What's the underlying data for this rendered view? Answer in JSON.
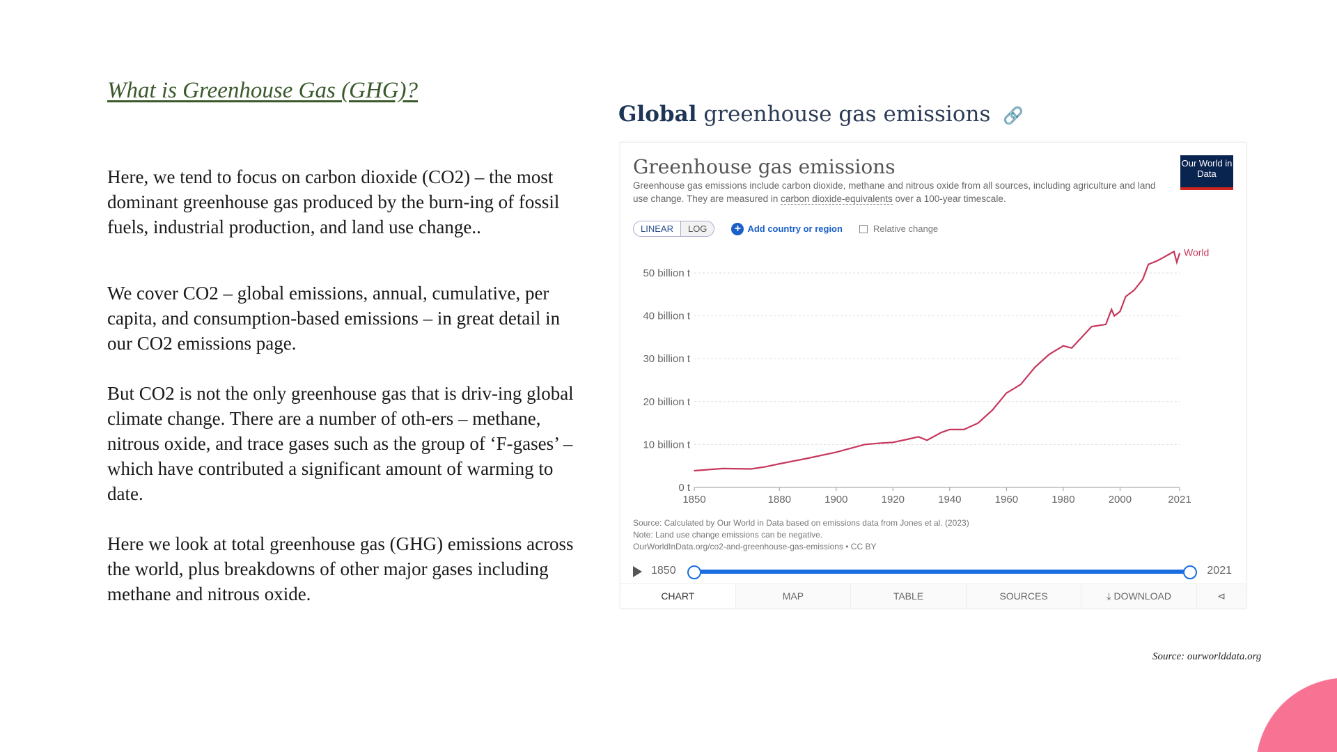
{
  "slide": {
    "heading": "What is Greenhouse Gas (GHG)?",
    "paragraphs": [
      "Here, we tend to focus on carbon dioxide (CO2) – the most dominant greenhouse gas produced by the burn-ing of fossil fuels, industrial production, and land use change..",
      "We cover CO2 – global emissions, annual, cumulative, per capita, and consumption-based emissions – in great detail in our CO2 emissions page.",
      "But CO2 is not the only greenhouse gas that is driv-ing global climate change. There are a number of oth-ers – methane, nitrous oxide, and trace gases such as the group of ‘F-gases’ – which have contributed a significant amount of warming to date.",
      "Here we look at total greenhouse gas (GHG) emissions across the world, plus breakdowns of other major gases including methane and nitrous oxide."
    ],
    "source": "Source: ourworlddata.org",
    "accent_color": "#f77293"
  },
  "embed": {
    "title_bold": "Global",
    "title_rest": "greenhouse gas emissions",
    "card_title": "Greenhouse gas emissions",
    "subtitle_a": "Greenhouse gas emissions include carbon dioxide, methane and nitrous oxide from all sources, including agriculture and land use change. They are measured in ",
    "subtitle_link": "carbon dioxide-equivalents",
    "subtitle_b": " over a 100-year timescale.",
    "logo": "Our World in Data",
    "linear": "LINEAR",
    "log": "LOG",
    "add": "Add country or region",
    "relative": "Relative change",
    "notes": [
      "Source: Calculated by Our World in Data based on emissions data from Jones et al. (2023)",
      "Note: Land use change emissions can be negative.",
      "OurWorldInData.org/co2-and-greenhouse-gas-emissions • CC BY"
    ],
    "slider_start": "1850",
    "slider_end": "2021",
    "tabs": [
      "CHART",
      "MAP",
      "TABLE",
      "SOURCES",
      "DOWNLOAD"
    ]
  },
  "chart_data": {
    "type": "line",
    "title": "Greenhouse gas emissions",
    "x_ticks": [
      "1850",
      "1880",
      "1900",
      "1920",
      "1940",
      "1960",
      "1980",
      "2000",
      "2021"
    ],
    "y_ticks": [
      "0 t",
      "10 billion t",
      "20 billion t",
      "30 billion t",
      "40 billion t",
      "50 billion t"
    ],
    "xlim": [
      1850,
      2021
    ],
    "ylim": [
      0,
      55
    ],
    "grid": "horizontal dotted",
    "series": [
      {
        "name": "World",
        "color": "#c6375c",
        "x": [
          1850,
          1860,
          1870,
          1875,
          1880,
          1890,
          1900,
          1910,
          1915,
          1920,
          1925,
          1929,
          1932,
          1937,
          1940,
          1945,
          1950,
          1955,
          1960,
          1965,
          1970,
          1975,
          1980,
          1983,
          1990,
          1995,
          1997,
          1998,
          2000,
          2002,
          2005,
          2008,
          2010,
          2013,
          2015,
          2019,
          2020,
          2021
        ],
        "y": [
          3.9,
          4.4,
          4.3,
          4.8,
          5.5,
          6.8,
          8.2,
          10.0,
          10.3,
          10.5,
          11.2,
          11.8,
          11.0,
          12.8,
          13.5,
          13.5,
          15.0,
          18.0,
          22.0,
          24.0,
          28.0,
          31.0,
          33.0,
          32.5,
          37.5,
          38.0,
          41.5,
          40.0,
          41.0,
          44.5,
          46.0,
          48.5,
          52.0,
          52.8,
          53.5,
          55.0,
          52.5,
          54.6
        ]
      }
    ]
  }
}
